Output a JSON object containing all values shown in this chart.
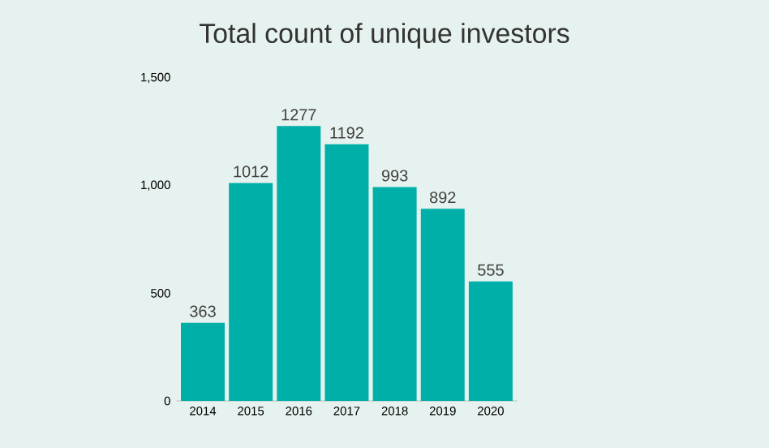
{
  "chart_data": {
    "type": "bar",
    "title": "Total count of unique investors",
    "categories": [
      "2014",
      "2015",
      "2016",
      "2017",
      "2018",
      "2019",
      "2020"
    ],
    "values": [
      363,
      1012,
      1277,
      1192,
      993,
      892,
      555
    ],
    "color": "#00b0a8",
    "ylim": [
      0,
      1500
    ],
    "yticks": [
      0,
      500,
      {
        "value": 1000,
        "label": "1,000"
      },
      {
        "value": 1500,
        "label": "1,500"
      }
    ],
    "data_labels": true
  }
}
